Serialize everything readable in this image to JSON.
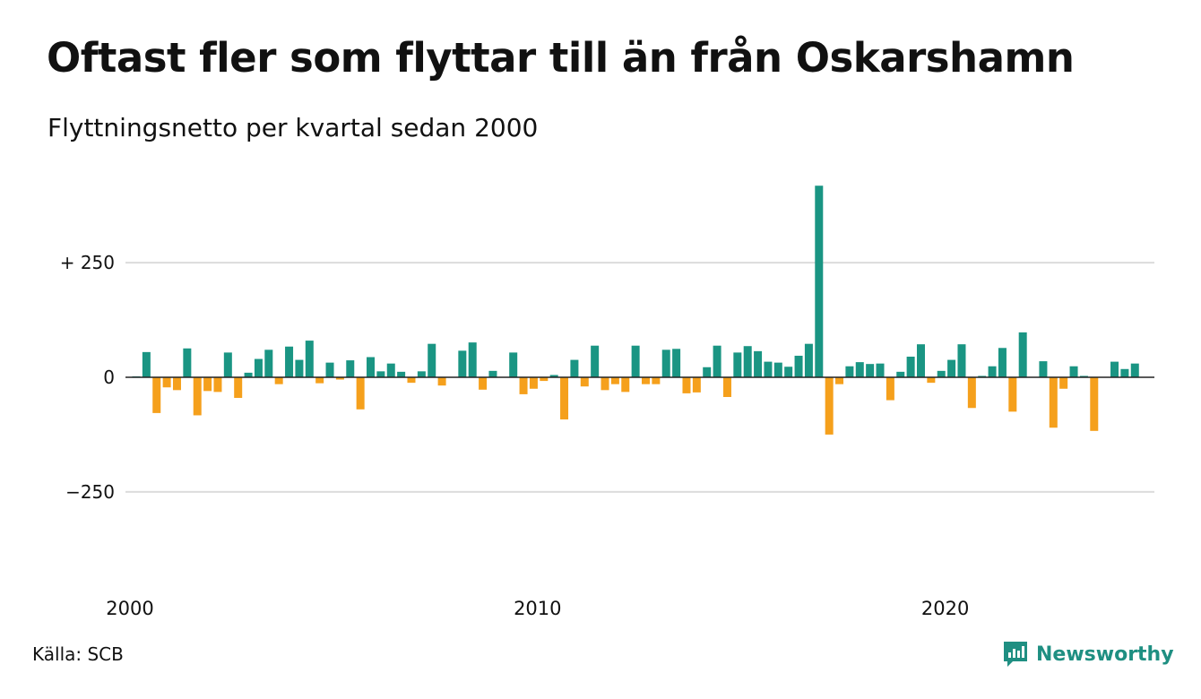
{
  "title": "Oftast fler som flyttar till än från Oskarshamn",
  "subtitle": "Flyttningsnetto per kvartal sedan 2000",
  "source": "Källa: SCB",
  "brand": "Newsworthy",
  "colors": {
    "positive": "#1a9583",
    "negative": "#f5a01c",
    "grid": "#dcdcdc",
    "zero_line": "#222222",
    "text": "#111111",
    "brand": "#1f8f82"
  },
  "chart_data": {
    "type": "bar",
    "title": "Oftast fler som flyttar till än från Oskarshamn",
    "subtitle": "Flyttningsnetto per kvartal sedan 2000",
    "xlabel": "",
    "ylabel": "",
    "ylim": [
      -420,
      420
    ],
    "x_start_year": 2000,
    "periods_per_year": 4,
    "grid": true,
    "y_ticks": [
      {
        "value": 250,
        "label": "+ 250"
      },
      {
        "value": 0,
        "label": "0"
      },
      {
        "value": -250,
        "label": "−250"
      }
    ],
    "x_ticks": [
      {
        "value": 2000,
        "label": "2000"
      },
      {
        "value": 2010,
        "label": "2010"
      },
      {
        "value": 2020,
        "label": "2020"
      }
    ],
    "values": [
      2,
      55,
      -78,
      -22,
      -28,
      63,
      -83,
      -30,
      -32,
      54,
      -45,
      10,
      40,
      60,
      -15,
      67,
      38,
      80,
      -13,
      32,
      -5,
      37,
      -70,
      44,
      13,
      30,
      12,
      -12,
      13,
      73,
      -18,
      0,
      58,
      76,
      -27,
      14,
      0,
      54,
      -37,
      -25,
      -8,
      5,
      -92,
      38,
      -20,
      69,
      -28,
      -15,
      -32,
      69,
      -15,
      -15,
      60,
      62,
      -35,
      -33,
      22,
      69,
      -43,
      54,
      68,
      57,
      34,
      32,
      23,
      47,
      73,
      418,
      -125,
      -15,
      24,
      33,
      29,
      30,
      -50,
      12,
      45,
      72,
      -12,
      14,
      38,
      72,
      -67,
      3,
      24,
      64,
      -75,
      98,
      0,
      35,
      -110,
      -25,
      24,
      3,
      -117,
      0,
      34,
      18,
      30
    ]
  }
}
